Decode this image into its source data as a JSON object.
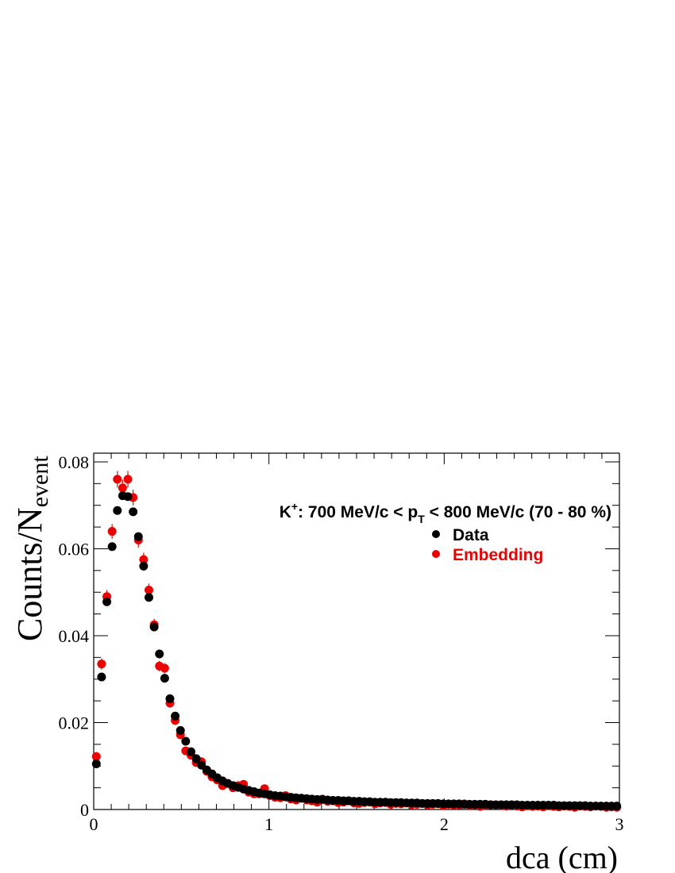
{
  "chart_data": {
    "type": "scatter",
    "title": "",
    "xlabel": "dca (cm)",
    "ylabel_main": "Counts/N",
    "ylabel_sub": "event",
    "xlim": [
      0,
      3
    ],
    "ylim": [
      0,
      0.082
    ],
    "x_ticks": [
      {
        "value": 0,
        "label": "0"
      },
      {
        "value": 1,
        "label": "1"
      },
      {
        "value": 2,
        "label": "2"
      },
      {
        "value": 3,
        "label": "3"
      }
    ],
    "y_ticks": [
      {
        "value": 0,
        "label": "0"
      },
      {
        "value": 0.02,
        "label": "0.02"
      },
      {
        "value": 0.04,
        "label": "0.04"
      },
      {
        "value": 0.06,
        "label": "0.06"
      },
      {
        "value": 0.08,
        "label": "0.08"
      }
    ],
    "grid": false,
    "annotation": {
      "particle": "K",
      "particle_sup": "+",
      "text_a": ": 700 MeV/c < p",
      "text_sub": "T",
      "text_b": " < 800 MeV/c (70 - 80 %)"
    },
    "legend_position": "top-right",
    "series": [
      {
        "name": "Data",
        "color": "#000000",
        "x": [
          0.015,
          0.045,
          0.075,
          0.105,
          0.135,
          0.165,
          0.195,
          0.225,
          0.255,
          0.285,
          0.315,
          0.345,
          0.375,
          0.405,
          0.435,
          0.465,
          0.495,
          0.525,
          0.555,
          0.585,
          0.615,
          0.645,
          0.675,
          0.705,
          0.735,
          0.765,
          0.795,
          0.825,
          0.855,
          0.885,
          0.915,
          0.945,
          0.975,
          1.005,
          1.035,
          1.065,
          1.095,
          1.125,
          1.155,
          1.185,
          1.215,
          1.245,
          1.275,
          1.305,
          1.335,
          1.365,
          1.395,
          1.425,
          1.455,
          1.485,
          1.515,
          1.545,
          1.575,
          1.605,
          1.635,
          1.665,
          1.695,
          1.725,
          1.755,
          1.785,
          1.815,
          1.845,
          1.875,
          1.905,
          1.935,
          1.965,
          1.995,
          2.025,
          2.055,
          2.085,
          2.115,
          2.145,
          2.175,
          2.205,
          2.235,
          2.265,
          2.295,
          2.325,
          2.355,
          2.385,
          2.415,
          2.445,
          2.475,
          2.505,
          2.535,
          2.565,
          2.595,
          2.625,
          2.655,
          2.685,
          2.715,
          2.745,
          2.775,
          2.805,
          2.835,
          2.865,
          2.895,
          2.925,
          2.955,
          2.985
        ],
        "y": [
          0.0105,
          0.0305,
          0.0478,
          0.0605,
          0.0688,
          0.0722,
          0.072,
          0.0685,
          0.0628,
          0.056,
          0.0488,
          0.042,
          0.0358,
          0.0302,
          0.0255,
          0.0215,
          0.0182,
          0.0157,
          0.0133,
          0.0117,
          0.0102,
          0.0091,
          0.0082,
          0.0073,
          0.0066,
          0.006,
          0.0055,
          0.0051,
          0.0047,
          0.0044,
          0.0041,
          0.0038,
          0.0036,
          0.0034,
          0.0032,
          0.0031,
          0.0029,
          0.0028,
          0.0027,
          0.0026,
          0.0025,
          0.0024,
          0.0023,
          0.0023,
          0.0022,
          0.0021,
          0.0021,
          0.002,
          0.002,
          0.0019,
          0.0019,
          0.0018,
          0.0018,
          0.0017,
          0.0017,
          0.0017,
          0.0016,
          0.0016,
          0.0016,
          0.0015,
          0.0015,
          0.0015,
          0.0014,
          0.0014,
          0.0014,
          0.0014,
          0.0013,
          0.0013,
          0.0013,
          0.0013,
          0.0012,
          0.0012,
          0.0012,
          0.0012,
          0.0012,
          0.0011,
          0.0011,
          0.0011,
          0.0011,
          0.0011,
          0.0011,
          0.001,
          0.001,
          0.001,
          0.001,
          0.001,
          0.001,
          0.001,
          0.0009,
          0.0009,
          0.0009,
          0.0009,
          0.0009,
          0.0009,
          0.0008,
          0.0008,
          0.0008,
          0.0008,
          0.0008,
          0.0008
        ]
      },
      {
        "name": "Embedding",
        "color": "#ee0000",
        "x": [
          0.015,
          0.045,
          0.075,
          0.105,
          0.135,
          0.165,
          0.195,
          0.225,
          0.255,
          0.285,
          0.315,
          0.345,
          0.375,
          0.405,
          0.435,
          0.465,
          0.495,
          0.525,
          0.555,
          0.585,
          0.615,
          0.645,
          0.675,
          0.705,
          0.735,
          0.765,
          0.795,
          0.825,
          0.855,
          0.885,
          0.915,
          0.945,
          0.975,
          1.005,
          1.035,
          1.065,
          1.095,
          1.125,
          1.155,
          1.185,
          1.215,
          1.245,
          1.275,
          1.305,
          1.335,
          1.365,
          1.395,
          1.425,
          1.455,
          1.485,
          1.515,
          1.545,
          1.575,
          1.605,
          1.635,
          1.665,
          1.695,
          1.725,
          1.755,
          1.785,
          1.815,
          1.845,
          1.875,
          1.905,
          1.935,
          1.965,
          1.995,
          2.025,
          2.055,
          2.085,
          2.115,
          2.145,
          2.175,
          2.205,
          2.235,
          2.265,
          2.295,
          2.325,
          2.355,
          2.385,
          2.415,
          2.445,
          2.475,
          2.505,
          2.535,
          2.565,
          2.595,
          2.625,
          2.655,
          2.685,
          2.715,
          2.745,
          2.775,
          2.805,
          2.835,
          2.865,
          2.895,
          2.925,
          2.955,
          2.985
        ],
        "y": [
          0.0122,
          0.0335,
          0.049,
          0.064,
          0.076,
          0.074,
          0.076,
          0.0718,
          0.062,
          0.0575,
          0.0505,
          0.0425,
          0.033,
          0.0325,
          0.0245,
          0.0205,
          0.0172,
          0.0135,
          0.0125,
          0.0108,
          0.011,
          0.0088,
          0.0075,
          0.0068,
          0.0055,
          0.006,
          0.005,
          0.0055,
          0.0058,
          0.004,
          0.0036,
          0.0036,
          0.0048,
          0.0032,
          0.0028,
          0.0027,
          0.0032,
          0.0024,
          0.0022,
          0.0026,
          0.0022,
          0.002,
          0.0017,
          0.0024,
          0.0019,
          0.002,
          0.0016,
          0.0017,
          0.002,
          0.0015,
          0.0014,
          0.0016,
          0.0017,
          0.0013,
          0.0015,
          0.0016,
          0.0012,
          0.0014,
          0.0013,
          0.0015,
          0.0011,
          0.0012,
          0.0014,
          0.001,
          0.0012,
          0.0013,
          0.0009,
          0.0012,
          0.001,
          0.0011,
          0.0013,
          0.0009,
          0.0011,
          0.0007,
          0.0009,
          0.0011,
          0.001,
          0.0009,
          0.0008,
          0.001,
          0.0008,
          0.0006,
          0.0009,
          0.0007,
          0.0008,
          0.0006,
          0.0009,
          0.0007,
          0.0006,
          0.0008,
          0.0007,
          0.0005,
          0.0008,
          0.0007,
          0.0006,
          0.0008,
          0.0007,
          0.0005,
          0.0006,
          0.0005
        ],
        "err": [
          0.001,
          0.0013,
          0.0015,
          0.0017,
          0.0019,
          0.0019,
          0.0019,
          0.0018,
          0.0017,
          0.0016,
          0.0015,
          0.0014,
          0.0012,
          0.0012,
          0.0011,
          0.001,
          0.0009,
          0.0008,
          0.0008,
          0.0007,
          0.0007,
          0.0007,
          0.0006,
          0.0006,
          0.0005,
          0.0005,
          0.0005,
          0.0005,
          0.0005,
          0.0004,
          0.0004,
          0.0004,
          0.0004,
          0.0004,
          0.0003,
          0.0003,
          0.0004,
          0.0003,
          0.0003,
          0.0003,
          0.0003,
          0.0003,
          0.0003,
          0.0003,
          0.0003,
          0.0003,
          0.0003,
          0.0003,
          0.0003,
          0.0003,
          0.0003,
          0.0003,
          0.0003,
          0.0003,
          0.0003,
          0.0003,
          0.0003,
          0.0003,
          0.0003,
          0.0003,
          0.0003,
          0.0003,
          0.0003,
          0.0003,
          0.0003,
          0.0003,
          0.0003,
          0.0003,
          0.0003,
          0.0003,
          0.0003,
          0.0003,
          0.0003,
          0.0003,
          0.0003,
          0.0003,
          0.0003,
          0.0003,
          0.0003,
          0.0003,
          0.0003,
          0.0003,
          0.0003,
          0.0003,
          0.0003,
          0.0003,
          0.0003,
          0.0003,
          0.0003,
          0.0003,
          0.0003,
          0.0003,
          0.0003,
          0.0003,
          0.0003,
          0.0003,
          0.0003,
          0.0003,
          0.0003,
          0.0003
        ]
      }
    ]
  }
}
